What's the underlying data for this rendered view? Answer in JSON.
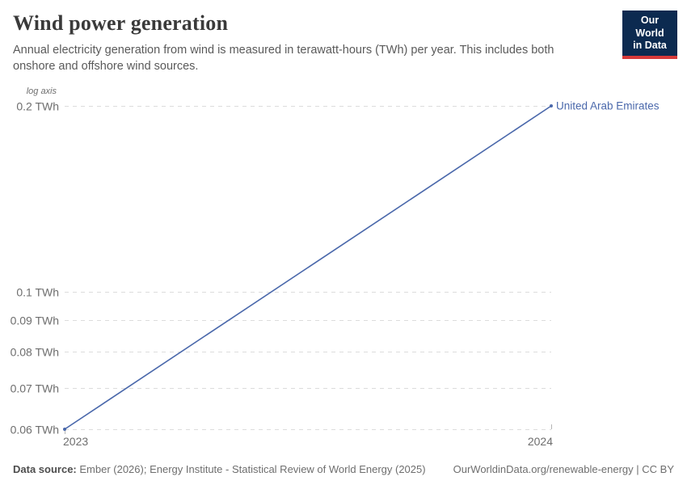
{
  "header": {
    "title": "Wind power generation",
    "subtitle": "Annual electricity generation from wind is measured in terawatt-hours (TWh) per year. This includes both onshore and offshore wind sources."
  },
  "logo": {
    "line1": "Our World",
    "line2": "in Data",
    "bg": "#0c2a50",
    "accent": "#d73a3a"
  },
  "chart_data": {
    "type": "line",
    "title": "Wind power generation",
    "yscale": "log",
    "axis_note": "log axis",
    "x": [
      2023,
      2024
    ],
    "x_tick_labels": [
      "2023",
      "2024"
    ],
    "series": [
      {
        "name": "United Arab Emirates",
        "values": [
          0.06,
          0.2
        ],
        "color": "#4a68ab"
      }
    ],
    "ylim": [
      0.06,
      0.2
    ],
    "y_ticks": [
      0.2,
      0.1,
      0.09,
      0.08,
      0.07,
      0.06
    ],
    "y_tick_labels": [
      "0.2 TWh",
      "0.1 TWh",
      "0.09 TWh",
      "0.08 TWh",
      "0.07 TWh",
      "0.06 TWh"
    ],
    "grid": true,
    "legend_position": "end-of-line"
  },
  "colors": {
    "line": "#4a68ab",
    "grid": "#dcdcdc",
    "tick_text": "#6e6e6e",
    "edge_tick": "#b5b5b5"
  },
  "footer": {
    "datasource_label": "Data source:",
    "datasource_value": " Ember (2026); Energy Institute - Statistical Review of World Energy (2025)",
    "link": "OurWorldinData.org/renewable-energy | CC BY"
  }
}
